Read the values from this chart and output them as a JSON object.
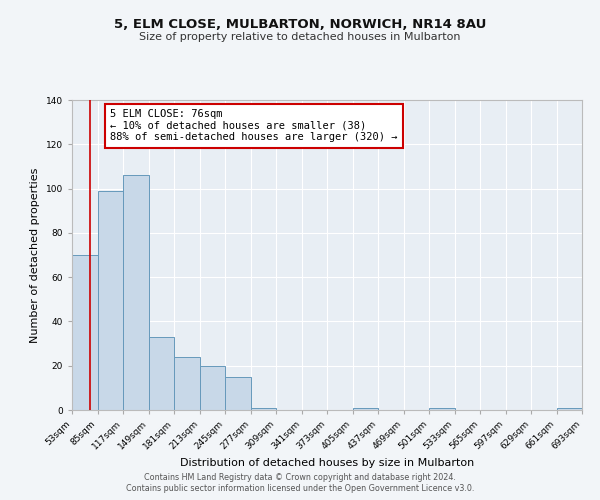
{
  "title1": "5, ELM CLOSE, MULBARTON, NORWICH, NR14 8AU",
  "title2": "Size of property relative to detached houses in Mulbarton",
  "xlabel": "Distribution of detached houses by size in Mulbarton",
  "ylabel": "Number of detached properties",
  "bin_edges": [
    53,
    85,
    117,
    149,
    181,
    213,
    245,
    277,
    309,
    341,
    373,
    405,
    437,
    469,
    501,
    533,
    565,
    597,
    629,
    661,
    693
  ],
  "bin_labels": [
    "53sqm",
    "85sqm",
    "117sqm",
    "149sqm",
    "181sqm",
    "213sqm",
    "245sqm",
    "277sqm",
    "309sqm",
    "341sqm",
    "373sqm",
    "405sqm",
    "437sqm",
    "469sqm",
    "501sqm",
    "533sqm",
    "565sqm",
    "597sqm",
    "629sqm",
    "661sqm",
    "693sqm"
  ],
  "counts": [
    70,
    99,
    106,
    33,
    24,
    20,
    15,
    1,
    0,
    0,
    0,
    1,
    0,
    0,
    1,
    0,
    0,
    0,
    0,
    1
  ],
  "bar_color": "#c8d8e8",
  "bar_edge_color": "#6699bb",
  "property_line_x": 76,
  "property_line_color": "#cc0000",
  "annotation_line1": "5 ELM CLOSE: 76sqm",
  "annotation_line2": "← 10% of detached houses are smaller (38)",
  "annotation_line3": "88% of semi-detached houses are larger (320) →",
  "annotation_box_color": "#cc0000",
  "background_color": "#f2f5f8",
  "plot_background_color": "#e8eef4",
  "grid_color": "#ffffff",
  "ylim": [
    0,
    140
  ],
  "yticks": [
    0,
    20,
    40,
    60,
    80,
    100,
    120,
    140
  ],
  "footer_line1": "Contains HM Land Registry data © Crown copyright and database right 2024.",
  "footer_line2": "Contains public sector information licensed under the Open Government Licence v3.0."
}
